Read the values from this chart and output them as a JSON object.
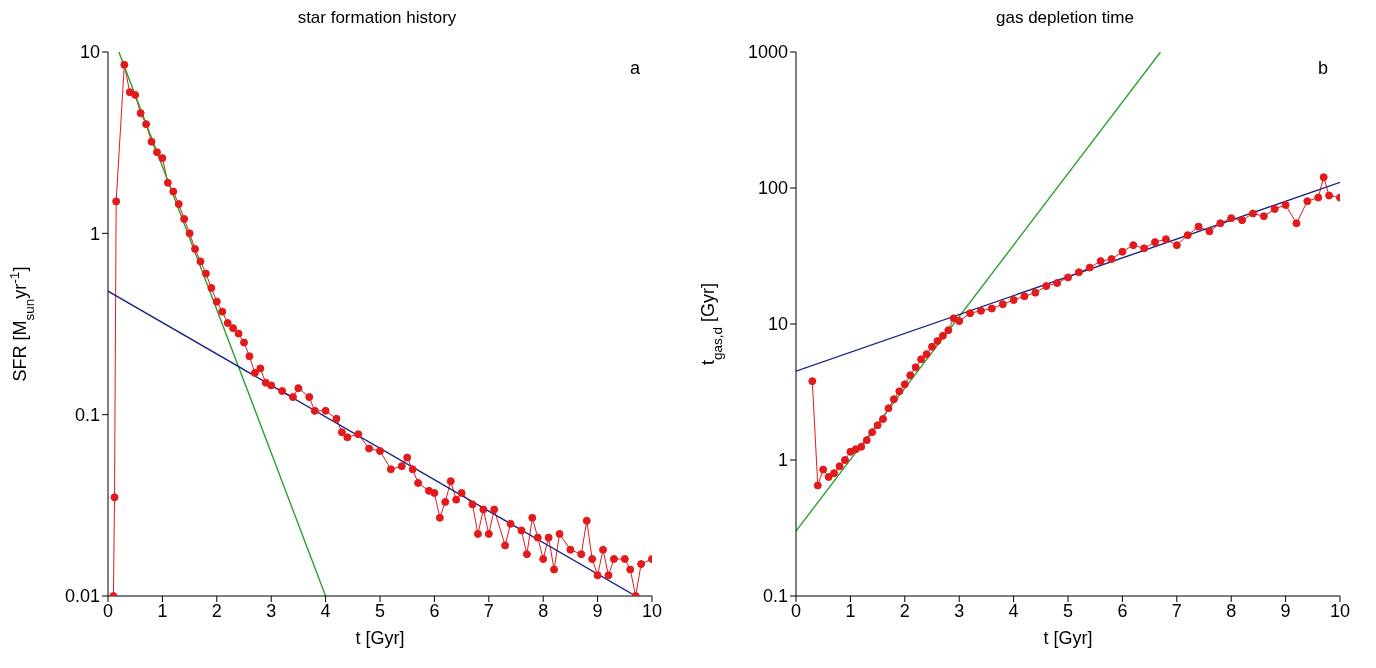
{
  "chart_data": [
    {
      "type": "line",
      "title": "star formation history",
      "xlabel": "t [Gyr]",
      "ylabel": "SFR [M$_{sun}$yr$^{-1}$]",
      "log": "y",
      "xlim": [
        0,
        10
      ],
      "xticks": [
        0,
        1,
        2,
        3,
        4,
        5,
        6,
        7,
        8,
        9,
        10
      ],
      "ylim": [
        0.01,
        10
      ],
      "yticks": [
        0.01,
        0.1,
        1,
        10
      ],
      "annotations": [
        "a"
      ],
      "series": [
        {
          "color": "#e31a1c",
          "marker": "circle",
          "x": [
            0.1,
            0.12,
            0.15,
            0.3,
            0.4,
            0.5,
            0.6,
            0.7,
            0.8,
            0.9,
            1.0,
            1.1,
            1.2,
            1.3,
            1.4,
            1.5,
            1.6,
            1.7,
            1.8,
            1.9,
            2.0,
            2.1,
            2.2,
            2.3,
            2.4,
            2.5,
            2.6,
            2.7,
            2.8,
            2.9,
            3.0,
            3.2,
            3.4,
            3.5,
            3.7,
            3.8,
            4.0,
            4.2,
            4.3,
            4.4,
            4.6,
            4.8,
            5.0,
            5.2,
            5.4,
            5.5,
            5.6,
            5.7,
            5.9,
            6.0,
            6.1,
            6.2,
            6.3,
            6.4,
            6.5,
            6.7,
            6.8,
            6.9,
            7.0,
            7.1,
            7.3,
            7.4,
            7.6,
            7.7,
            7.8,
            7.9,
            8.0,
            8.1,
            8.2,
            8.3,
            8.5,
            8.7,
            8.8,
            8.9,
            9.0,
            9.1,
            9.2,
            9.3,
            9.5,
            9.6,
            9.7,
            9.8,
            10.0
          ],
          "values": [
            0.01,
            0.035,
            1.5,
            8.5,
            6,
            5.8,
            4.6,
            4.0,
            3.2,
            2.8,
            2.6,
            1.9,
            1.7,
            1.45,
            1.2,
            1.0,
            0.82,
            0.7,
            0.6,
            0.5,
            0.42,
            0.37,
            0.32,
            0.3,
            0.28,
            0.25,
            0.21,
            0.17,
            0.18,
            0.15,
            0.145,
            0.135,
            0.125,
            0.14,
            0.125,
            0.105,
            0.105,
            0.095,
            0.08,
            0.075,
            0.078,
            0.065,
            0.063,
            0.05,
            0.052,
            0.058,
            0.05,
            0.042,
            0.038,
            0.037,
            0.027,
            0.033,
            0.043,
            0.034,
            0.037,
            0.032,
            0.022,
            0.03,
            0.022,
            0.03,
            0.019,
            0.025,
            0.023,
            0.017,
            0.027,
            0.021,
            0.016,
            0.021,
            0.014,
            0.022,
            0.018,
            0.017,
            0.026,
            0.016,
            0.013,
            0.018,
            0.013,
            0.016,
            0.016,
            0.014,
            0.01,
            0.015,
            0.016
          ]
        },
        {
          "color": "#2ca02c",
          "marker": "none",
          "x": [
            0.2,
            4
          ],
          "values": [
            10,
            0.01
          ]
        },
        {
          "color": "#1a2380",
          "marker": "none",
          "x": [
            0,
            9.7
          ],
          "values": [
            0.48,
            0.01
          ]
        }
      ]
    },
    {
      "type": "line",
      "title": "gas depletion time",
      "xlabel": "t [Gyr]",
      "ylabel": "t$_{gas,d}$ [Gyr]",
      "log": "y",
      "xlim": [
        0,
        10
      ],
      "xticks": [
        0,
        1,
        2,
        3,
        4,
        5,
        6,
        7,
        8,
        9,
        10
      ],
      "ylim": [
        0.1,
        1000
      ],
      "yticks": [
        0.1,
        1,
        10,
        100,
        1000
      ],
      "annotations": [
        "b"
      ],
      "series": [
        {
          "color": "#e31a1c",
          "marker": "circle",
          "x": [
            0.3,
            0.4,
            0.5,
            0.6,
            0.7,
            0.8,
            0.9,
            1.0,
            1.1,
            1.2,
            1.3,
            1.4,
            1.5,
            1.6,
            1.7,
            1.8,
            1.9,
            2.0,
            2.1,
            2.2,
            2.3,
            2.4,
            2.5,
            2.6,
            2.7,
            2.8,
            2.9,
            3.0,
            3.2,
            3.4,
            3.6,
            3.8,
            4.0,
            4.2,
            4.4,
            4.6,
            4.8,
            5.0,
            5.2,
            5.4,
            5.6,
            5.8,
            6.0,
            6.2,
            6.4,
            6.6,
            6.8,
            7.0,
            7.2,
            7.4,
            7.6,
            7.8,
            8.0,
            8.2,
            8.4,
            8.6,
            8.8,
            9.0,
            9.2,
            9.4,
            9.6,
            9.7,
            9.8,
            10.0
          ],
          "values": [
            3.8,
            0.65,
            0.85,
            0.75,
            0.8,
            0.9,
            1.0,
            1.15,
            1.2,
            1.25,
            1.4,
            1.6,
            1.8,
            2.0,
            2.4,
            2.8,
            3.2,
            3.6,
            4.2,
            4.8,
            5.5,
            6.0,
            6.8,
            7.5,
            8.2,
            9.0,
            11,
            10.5,
            12,
            12.5,
            13,
            14,
            15,
            16,
            17,
            19,
            20,
            22,
            24,
            26,
            29,
            30,
            34,
            38,
            36,
            40,
            42,
            38,
            45,
            52,
            48,
            55,
            60,
            58,
            65,
            62,
            70,
            75,
            55,
            80,
            85,
            120,
            88,
            85
          ]
        },
        {
          "color": "#2ca02c",
          "marker": "none",
          "x": [
            0,
            6.7
          ],
          "values": [
            0.3,
            1000
          ]
        },
        {
          "color": "#1a2380",
          "marker": "none",
          "x": [
            0,
            10
          ],
          "values": [
            4.5,
            110
          ]
        }
      ]
    }
  ]
}
